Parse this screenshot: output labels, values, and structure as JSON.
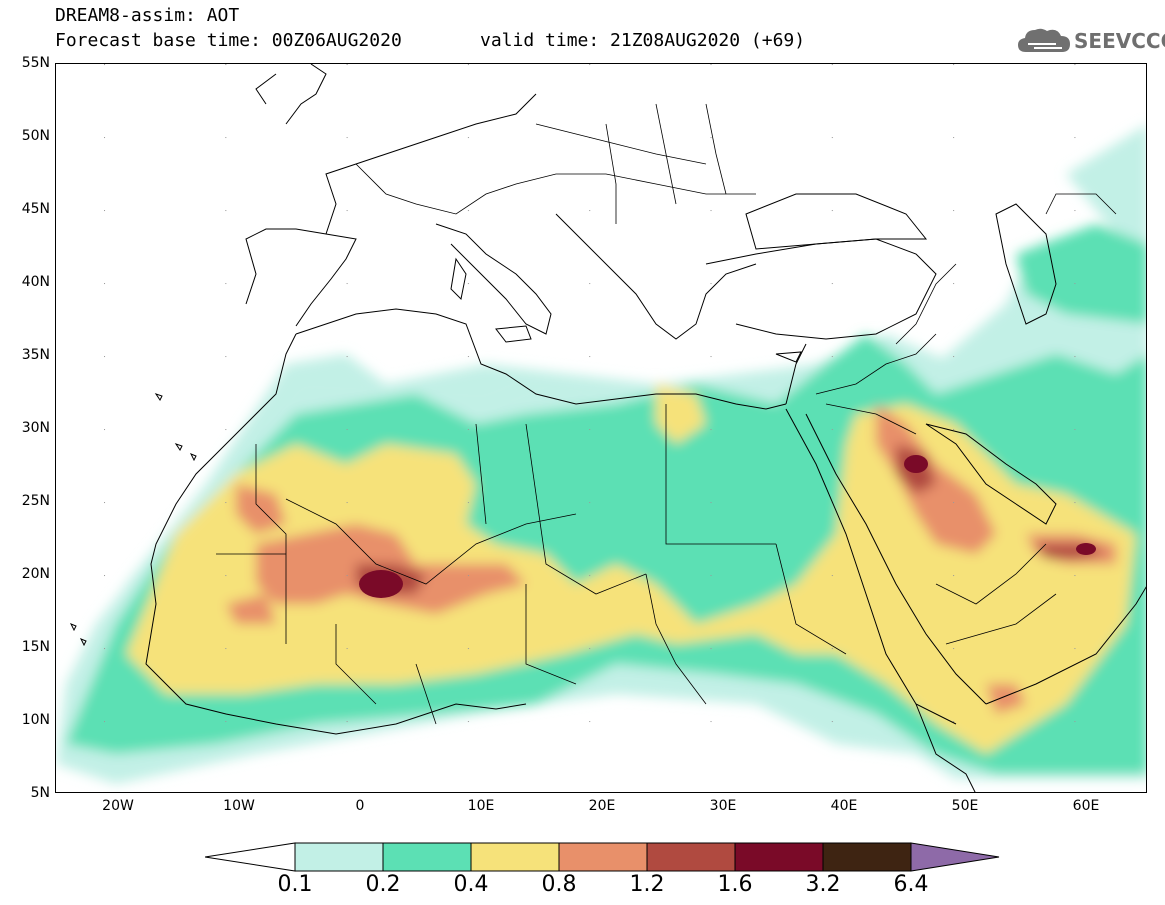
{
  "header": {
    "title": "DREAM8-assim: AOT",
    "base_time": "Forecast base time: 00Z06AUG2020",
    "valid_time": "valid time: 21Z08AUG2020 (+69)"
  },
  "logo": {
    "icon": "cloud-icon",
    "text": "SEEVCCC"
  },
  "map": {
    "lon_range": [
      -25,
      65
    ],
    "lat_range": [
      5,
      55
    ],
    "y_ticks": [
      "55N",
      "50N",
      "45N",
      "40N",
      "35N",
      "30N",
      "25N",
      "20N",
      "15N",
      "10N",
      "5N"
    ],
    "x_ticks": [
      "20W",
      "10W",
      "0",
      "10E",
      "20E",
      "30E",
      "40E",
      "50E",
      "60E"
    ]
  },
  "legend": {
    "levels": [
      "0.1",
      "0.2",
      "0.4",
      "0.8",
      "1.2",
      "1.6",
      "3.2",
      "6.4"
    ],
    "colors": [
      "#ffffff",
      "#c2f0e6",
      "#5ce0b4",
      "#f6e27a",
      "#e8906a",
      "#b04a40",
      "#7a0a28",
      "#3e2412",
      "#8e6aa8"
    ]
  }
}
